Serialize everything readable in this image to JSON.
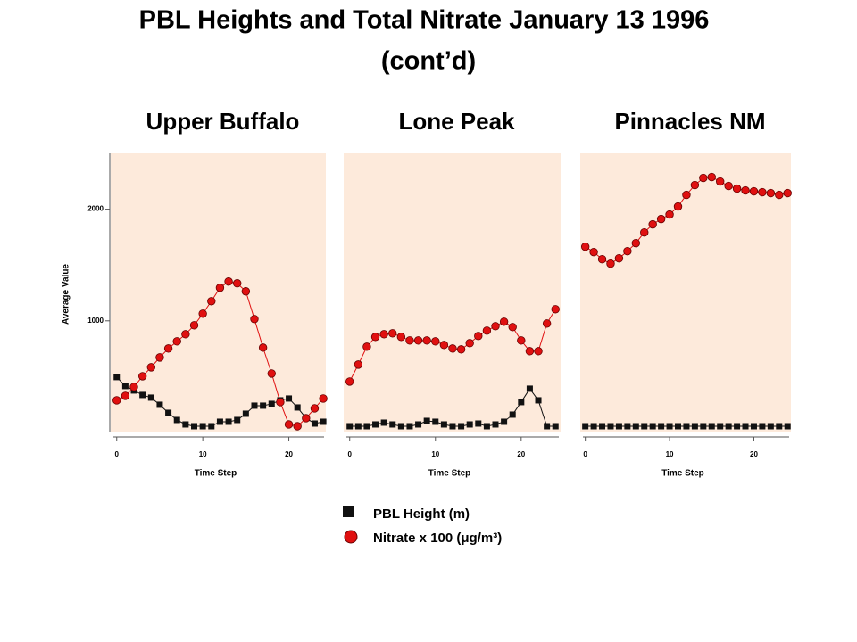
{
  "title": "PBL Heights and Total Nitrate January 13 1996",
  "subtitle": "(cont’d)",
  "chart_data": [
    {
      "type": "line",
      "title": "Upper Buffalo",
      "x_label": "Time Step",
      "y_label": "Average Value",
      "x": [
        0,
        1,
        2,
        3,
        4,
        5,
        6,
        7,
        8,
        9,
        10,
        11,
        12,
        13,
        14,
        15,
        16,
        17,
        18,
        19,
        20,
        21,
        22,
        23,
        24
      ],
      "xlim": [
        -0.7,
        24.3
      ],
      "xticks": [
        0,
        10,
        20
      ],
      "ylim": [
        0,
        2500
      ],
      "yticks": [
        1000,
        2000
      ],
      "series": [
        {
          "name": "PBL Height (m)",
          "color": "#111111",
          "marker": "square",
          "values": [
            496,
            416,
            376,
            336,
            312,
            248,
            176,
            112,
            72,
            56,
            56,
            56,
            96,
            96,
            112,
            168,
            240,
            240,
            256,
            288,
            304,
            224,
            128,
            80,
            96
          ]
        },
        {
          "name": "Nitrate x 100 (μg/m³)",
          "color": "#e01010",
          "marker": "circle",
          "values": [
            288,
            328,
            408,
            504,
            584,
            672,
            752,
            816,
            880,
            960,
            1064,
            1176,
            1296,
            1352,
            1336,
            1264,
            1016,
            760,
            528,
            272,
            72,
            56,
            128,
            216,
            304
          ]
        }
      ]
    },
    {
      "type": "line",
      "title": "Lone Peak",
      "x_label": "Time Step",
      "x": [
        0,
        1,
        2,
        3,
        4,
        5,
        6,
        7,
        8,
        9,
        10,
        11,
        12,
        13,
        14,
        15,
        16,
        17,
        18,
        19,
        20,
        21,
        22,
        23,
        24
      ],
      "xlim": [
        -0.7,
        24.6
      ],
      "xticks": [
        0,
        10,
        20
      ],
      "ylim": [
        0,
        2500
      ],
      "series": [
        {
          "name": "PBL Height (m)",
          "color": "#111111",
          "marker": "square",
          "values": [
            56,
            56,
            56,
            72,
            88,
            72,
            56,
            56,
            72,
            104,
            96,
            72,
            56,
            56,
            72,
            80,
            56,
            72,
            96,
            160,
            272,
            392,
            288,
            56,
            56
          ]
        },
        {
          "name": "Nitrate x 100 (μg/m³)",
          "color": "#e01010",
          "marker": "circle",
          "values": [
            456,
            608,
            768,
            856,
            880,
            888,
            856,
            824,
            824,
            824,
            816,
            784,
            752,
            744,
            800,
            864,
            912,
            952,
            992,
            944,
            824,
            728,
            728,
            976,
            1104
          ]
        }
      ]
    },
    {
      "type": "line",
      "title": "Pinnacles NM",
      "x_label": "Time Step",
      "x": [
        0,
        1,
        2,
        3,
        4,
        5,
        6,
        7,
        8,
        9,
        10,
        11,
        12,
        13,
        14,
        15,
        16,
        17,
        18,
        19,
        20,
        21,
        22,
        23,
        24
      ],
      "xlim": [
        -0.6,
        24.4
      ],
      "xticks": [
        0,
        10,
        20
      ],
      "ylim": [
        0,
        2500
      ],
      "series": [
        {
          "name": "PBL Height (m)",
          "color": "#111111",
          "marker": "square",
          "values": [
            56,
            56,
            56,
            56,
            56,
            56,
            56,
            56,
            56,
            56,
            56,
            56,
            56,
            56,
            56,
            56,
            56,
            56,
            56,
            56,
            56,
            56,
            56,
            56,
            56
          ]
        },
        {
          "name": "Nitrate x 100 (μg/m³)",
          "color": "#e01010",
          "marker": "circle",
          "values": [
            1664,
            1616,
            1552,
            1512,
            1560,
            1624,
            1696,
            1792,
            1864,
            1912,
            1952,
            2024,
            2128,
            2216,
            2280,
            2288,
            2248,
            2208,
            2184,
            2168,
            2160,
            2152,
            2144,
            2128,
            2144
          ]
        }
      ]
    }
  ]
}
